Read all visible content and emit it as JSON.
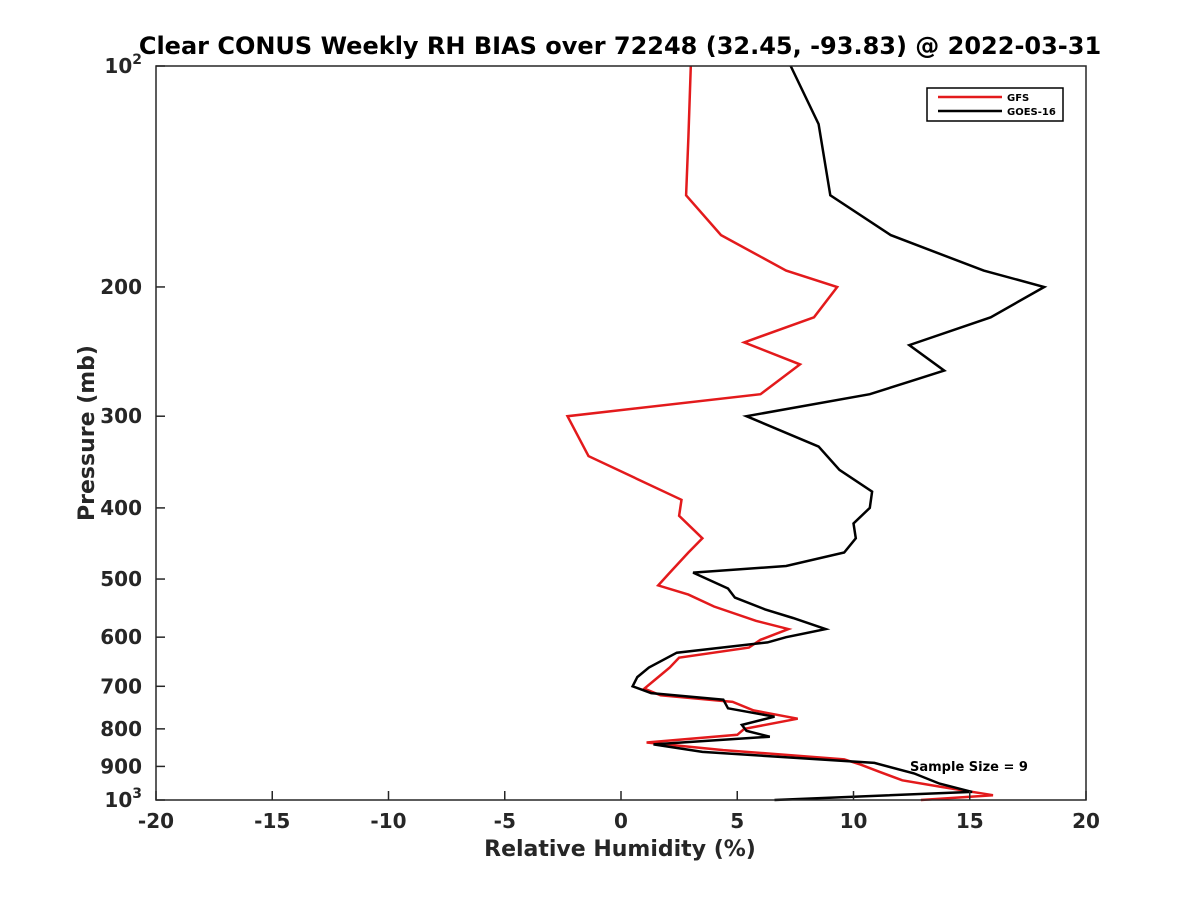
{
  "chart_data": {
    "type": "line",
    "title": "Clear CONUS Weekly RH BIAS over 72248 (32.45, -93.83) @ 2022-03-31",
    "xlabel": "Relative Humidity (%)",
    "ylabel": "Pressure (mb)",
    "xlim": [
      -20,
      20
    ],
    "ylim": [
      100,
      1000
    ],
    "yscale": "log",
    "y_reversed": true,
    "grid": false,
    "legend_position": "top-right",
    "xticks": [
      -20,
      -15,
      -10,
      -5,
      0,
      5,
      10,
      15,
      20
    ],
    "xtick_labels": [
      "-20",
      "-15",
      "-10",
      "-5",
      "0",
      "5",
      "10",
      "15",
      "20"
    ],
    "yticks": [
      {
        "value": 100,
        "base": "10",
        "exp": "2"
      },
      {
        "value": 200,
        "label": "200"
      },
      {
        "value": 300,
        "label": "300"
      },
      {
        "value": 400,
        "label": "400"
      },
      {
        "value": 500,
        "label": "500"
      },
      {
        "value": 600,
        "label": "600"
      },
      {
        "value": 700,
        "label": "700"
      },
      {
        "value": 800,
        "label": "800"
      },
      {
        "value": 900,
        "label": "900"
      },
      {
        "value": 1000,
        "base": "10",
        "exp": "3"
      }
    ],
    "series": [
      {
        "name": "GFS",
        "color": "#e31a1c",
        "points": [
          [
            3.0,
            100
          ],
          [
            2.9,
            125
          ],
          [
            2.8,
            150
          ],
          [
            4.3,
            170
          ],
          [
            7.1,
            190
          ],
          [
            9.3,
            200
          ],
          [
            8.3,
            220
          ],
          [
            5.3,
            238
          ],
          [
            7.7,
            255
          ],
          [
            6.0,
            280
          ],
          [
            -2.3,
            300
          ],
          [
            -1.4,
            340
          ],
          [
            2.6,
            390
          ],
          [
            2.5,
            410
          ],
          [
            3.5,
            440
          ],
          [
            2.9,
            460
          ],
          [
            2.1,
            490
          ],
          [
            1.6,
            510
          ],
          [
            2.9,
            525
          ],
          [
            4.0,
            545
          ],
          [
            5.8,
            570
          ],
          [
            7.2,
            585
          ],
          [
            6.0,
            605
          ],
          [
            5.5,
            620
          ],
          [
            2.5,
            640
          ],
          [
            2.1,
            660
          ],
          [
            1.6,
            680
          ],
          [
            1.0,
            705
          ],
          [
            1.7,
            720
          ],
          [
            4.8,
            735
          ],
          [
            5.7,
            755
          ],
          [
            7.6,
            775
          ],
          [
            5.3,
            800
          ],
          [
            5.0,
            815
          ],
          [
            1.1,
            835
          ],
          [
            4.4,
            855
          ],
          [
            9.6,
            880
          ],
          [
            10.3,
            895
          ],
          [
            11.1,
            915
          ],
          [
            12.1,
            940
          ],
          [
            13.8,
            960
          ],
          [
            16.0,
            985
          ],
          [
            12.9,
            1000
          ]
        ]
      },
      {
        "name": "GOES-16",
        "color": "#000000",
        "points": [
          [
            7.3,
            100
          ],
          [
            8.5,
            120
          ],
          [
            9.0,
            150
          ],
          [
            11.6,
            170
          ],
          [
            15.6,
            190
          ],
          [
            18.2,
            200
          ],
          [
            15.9,
            220
          ],
          [
            12.4,
            240
          ],
          [
            13.9,
            260
          ],
          [
            10.7,
            280
          ],
          [
            5.4,
            300
          ],
          [
            8.5,
            330
          ],
          [
            9.4,
            355
          ],
          [
            10.8,
            380
          ],
          [
            10.7,
            400
          ],
          [
            10.0,
            420
          ],
          [
            10.1,
            440
          ],
          [
            9.6,
            460
          ],
          [
            7.1,
            480
          ],
          [
            3.1,
            490
          ],
          [
            4.6,
            515
          ],
          [
            4.9,
            530
          ],
          [
            6.2,
            550
          ],
          [
            7.4,
            565
          ],
          [
            8.8,
            585
          ],
          [
            7.1,
            600
          ],
          [
            6.3,
            610
          ],
          [
            2.4,
            630
          ],
          [
            1.2,
            660
          ],
          [
            0.7,
            680
          ],
          [
            0.5,
            700
          ],
          [
            1.3,
            715
          ],
          [
            4.4,
            730
          ],
          [
            4.6,
            750
          ],
          [
            6.6,
            770
          ],
          [
            5.2,
            790
          ],
          [
            5.4,
            805
          ],
          [
            6.4,
            820
          ],
          [
            1.4,
            840
          ],
          [
            3.5,
            860
          ],
          [
            10.9,
            890
          ],
          [
            12.6,
            920
          ],
          [
            13.7,
            950
          ],
          [
            15.1,
            975
          ],
          [
            6.6,
            1000
          ]
        ]
      }
    ],
    "annotation": "Sample Size = 9"
  }
}
